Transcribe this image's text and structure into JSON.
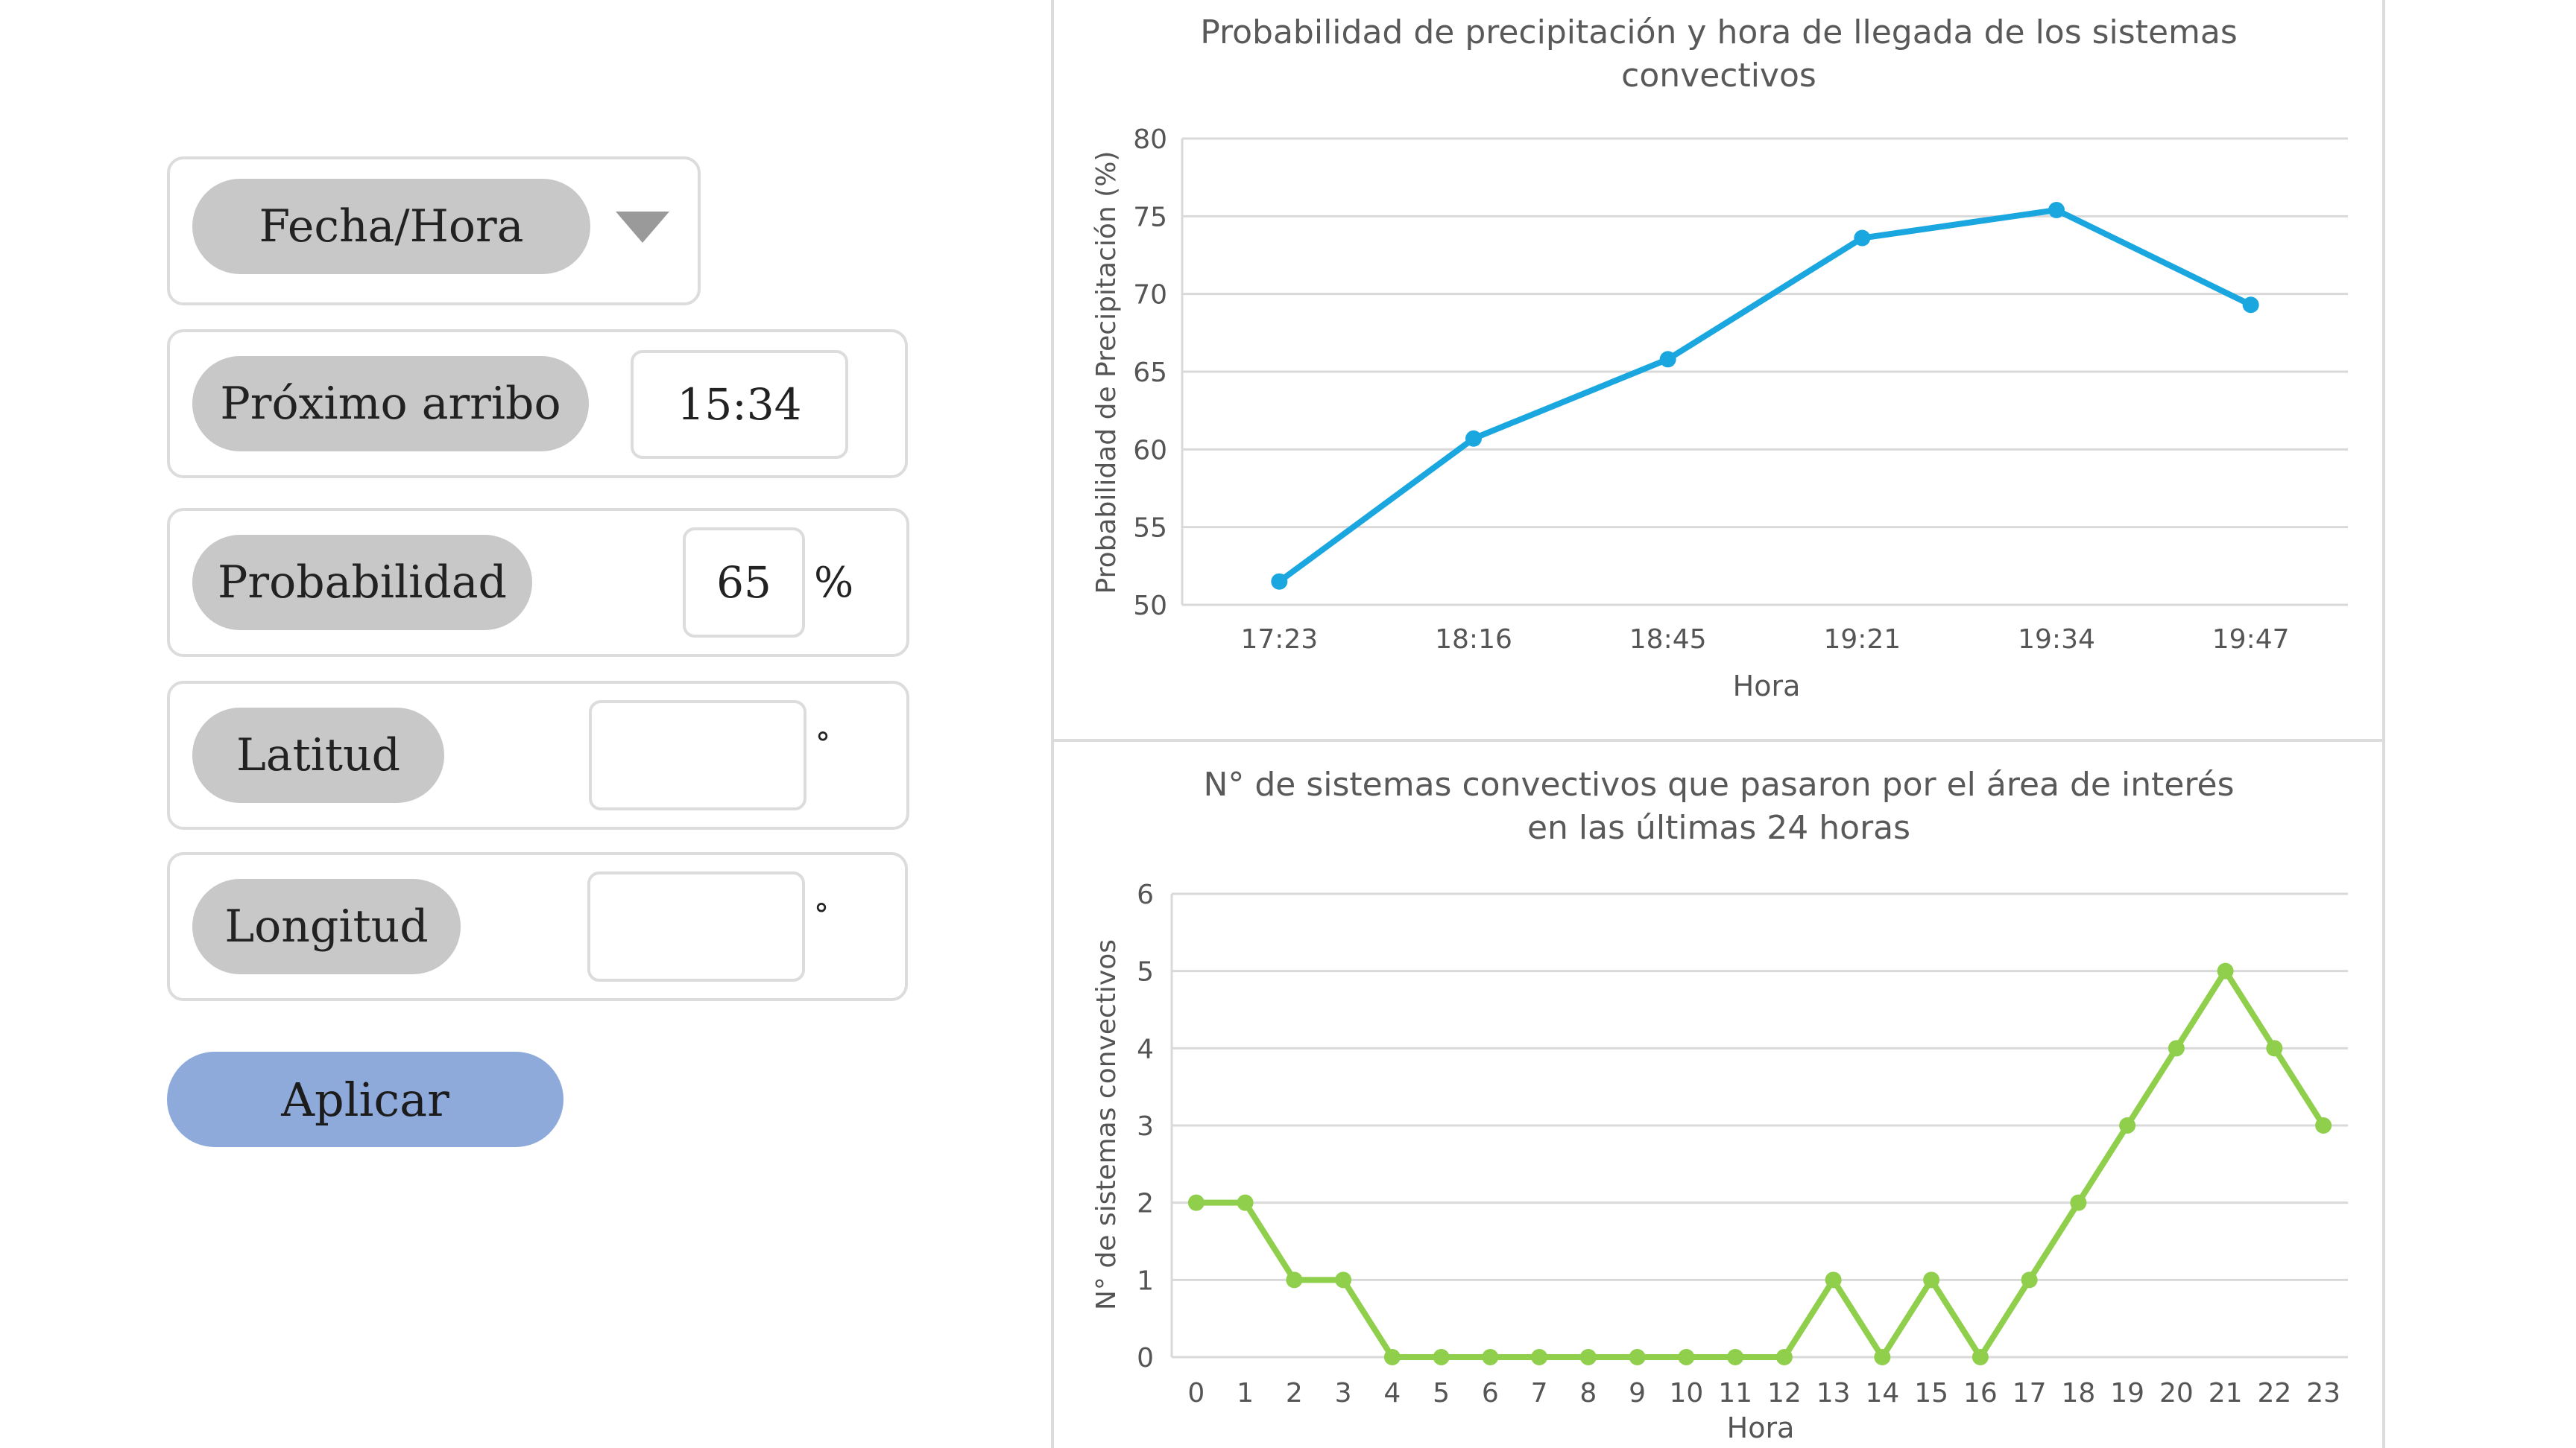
{
  "form": {
    "datetime": {
      "label": "Fecha/Hora"
    },
    "arrival": {
      "label": "Próximo arribo",
      "value": "15:34"
    },
    "probability": {
      "label": "Probabilidad",
      "value": "65",
      "unit": "%"
    },
    "latitude": {
      "label": "Latitud",
      "value": "",
      "unit": "°"
    },
    "longitude": {
      "label": "Longitud",
      "value": "",
      "unit": "°"
    },
    "apply_label": "Aplicar"
  },
  "colors": {
    "series_top": "#1aa7e0",
    "series_bottom": "#8fcf4c",
    "apply_button": "#8eaadb"
  },
  "chart_data": [
    {
      "type": "line",
      "title_line1": "Probabilidad de precipitación y hora de llegada de los sistemas",
      "title_line2": "convectivos",
      "xlabel": "Hora",
      "ylabel": "Probabilidad de Precipitación (%)",
      "categories": [
        "17:23",
        "18:16",
        "18:45",
        "19:21",
        "19:34",
        "19:47"
      ],
      "values": [
        51.5,
        60.7,
        65.8,
        73.6,
        75.4,
        69.3
      ],
      "ylim": [
        50,
        80
      ],
      "yticks": [
        "50",
        "55",
        "60",
        "65",
        "70",
        "75",
        "80"
      ],
      "grid": true
    },
    {
      "type": "line",
      "title_line1": "N° de sistemas convectivos que pasaron por el área de interés",
      "title_line2": "en las últimas 24 horas",
      "xlabel": "Hora",
      "ylabel": "N° de sistemas convectivos",
      "categories": [
        "0",
        "1",
        "2",
        "3",
        "4",
        "5",
        "6",
        "7",
        "8",
        "9",
        "10",
        "11",
        "12",
        "13",
        "14",
        "15",
        "16",
        "17",
        "18",
        "19",
        "20",
        "21",
        "22",
        "23"
      ],
      "values": [
        2,
        2,
        1,
        1,
        0,
        0,
        0,
        0,
        0,
        0,
        0,
        0,
        0,
        1,
        0,
        1,
        0,
        1,
        2,
        3,
        4,
        5,
        4,
        3
      ],
      "ylim": [
        0,
        6
      ],
      "yticks": [
        "0",
        "1",
        "2",
        "3",
        "4",
        "5",
        "6"
      ],
      "grid": true
    }
  ]
}
